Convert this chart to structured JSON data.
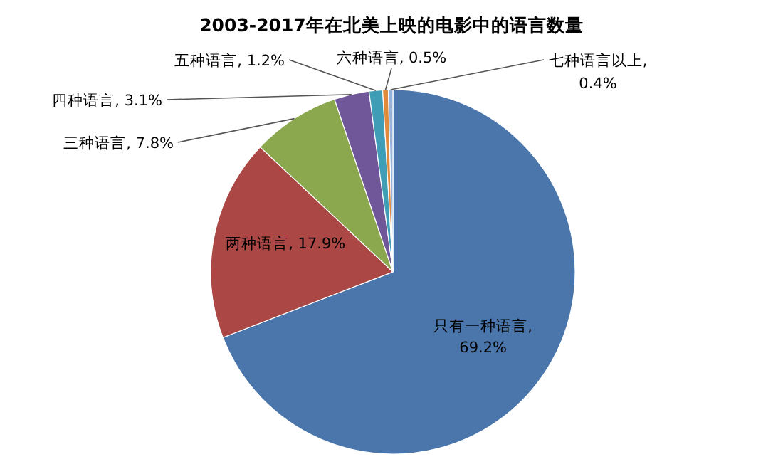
{
  "chart_data": {
    "type": "pie",
    "title": "2003-2017年在北美上映的电影中的语言数量",
    "categories": [
      "只有一种语言",
      "两种语言",
      "三种语言",
      "四种语言",
      "五种语言",
      "六种语言",
      "七种语言以上"
    ],
    "values": [
      69.2,
      17.9,
      7.8,
      3.1,
      1.2,
      0.5,
      0.4
    ],
    "colors": [
      "#4a76ab",
      "#ab4744",
      "#8ba84f",
      "#70579a",
      "#3f9db6",
      "#e08a3c",
      "#98b2d8"
    ],
    "value_labels": [
      ", 69.2%",
      ", 17.9%",
      ", 7.8%",
      ", 3.1%",
      ", 1.2%",
      ", 0.5%",
      ", 0.4%"
    ]
  }
}
